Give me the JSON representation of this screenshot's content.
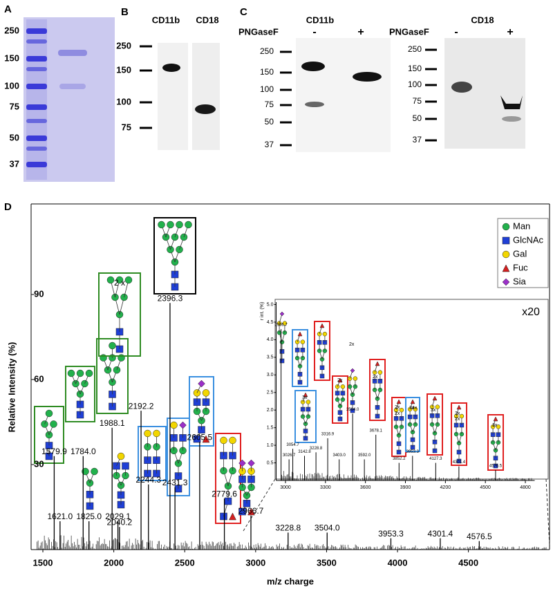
{
  "panels": {
    "A": {
      "label": "A",
      "ladder": [
        "250",
        "150",
        "100",
        "75",
        "50",
        "37"
      ]
    },
    "B": {
      "label": "B",
      "lanes": [
        "CD11b",
        "CD18"
      ],
      "ladder": [
        "250",
        "150",
        "100",
        "75"
      ]
    },
    "C": {
      "label": "C",
      "blots": [
        {
          "title": "CD11b",
          "treatment": "PNGaseF",
          "lanes": [
            "-",
            "+"
          ],
          "ladder": [
            "250",
            "150",
            "100",
            "75",
            "50",
            "37"
          ]
        },
        {
          "title": "CD18",
          "treatment": "PNGaseF",
          "lanes": [
            "-",
            "+"
          ],
          "ladder": [
            "250",
            "150",
            "100",
            "75",
            "50",
            "37"
          ]
        }
      ]
    },
    "D": {
      "label": "D",
      "legend": [
        {
          "name": "Man",
          "color": "#22b14c"
        },
        {
          "name": "GlcNAc",
          "color": "#1f3fd6"
        },
        {
          "name": "Gal",
          "color": "#f2d600"
        },
        {
          "name": "Fuc",
          "color": "#d42020"
        },
        {
          "name": "Sia",
          "color": "#9b30c8"
        }
      ],
      "glycan_notes": [
        "2 x"
      ],
      "inset_notes": [
        "2x",
        "2x",
        "3x",
        "2x",
        "2x",
        "3x",
        "2x",
        "3x",
        "3x",
        "2x",
        "3x",
        "4x"
      ]
    }
  },
  "chart_data": [
    {
      "type": "spectrum",
      "xlabel": "m/z charge",
      "ylabel": "Relative Intensity (%)",
      "color": "#000000",
      "x": [
        1579.9,
        1621.0,
        1784.0,
        1825.0,
        1988.1,
        2029.1,
        2040.2,
        2192.2,
        2244.3,
        2396.3,
        2431.3,
        2605.5,
        2779.6,
        2966.7,
        3228.8,
        3504.0,
        3953.3,
        4301.4,
        4576.5
      ],
      "values": [
        33,
        10,
        33,
        10,
        43,
        10,
        8,
        49,
        23,
        87,
        22,
        38,
        18,
        12,
        6,
        6,
        4,
        4,
        3
      ],
      "peak_labels": [
        "1579.9",
        "1621.0",
        "1784.0",
        "1825.0",
        "1988.1",
        "2029.1",
        "2040.2",
        "2192.2",
        "2244.3",
        "2396.3",
        "2431.3",
        "2605.5",
        "2779.6",
        "2966.7",
        "3228.8",
        "3504.0",
        "3953.3",
        "4301.4",
        "4576.5"
      ],
      "xlim": [
        1420,
        5070
      ],
      "xticks": [
        1500,
        2000,
        2500,
        3000,
        3500,
        4000,
        4500
      ],
      "ylim": [
        0,
        120
      ],
      "yticks": [
        30,
        60,
        90
      ]
    },
    {
      "type": "spectrum",
      "ylabel": "r int. (%)",
      "note": "x20",
      "color": "#000000",
      "x": [
        2966.7,
        3026.7,
        3054.7,
        3142.8,
        3228.8,
        3316.9,
        3403.0,
        3504.0,
        3592.0,
        3678.1,
        3852.2,
        3953.3,
        4127.3,
        4301.4,
        4576.5
      ],
      "values": [
        4.3,
        0.6,
        0.9,
        0.7,
        0.8,
        1.2,
        0.6,
        1.9,
        0.6,
        1.3,
        0.5,
        0.7,
        0.5,
        0.4,
        0.3
      ],
      "peak_labels": [
        "2966.7",
        "3026.7",
        "3054.7",
        "3142.8",
        "3228.8",
        "3316.9",
        "3403.0",
        "3504.0",
        "3592.0",
        "3678.1",
        "3852.2",
        "3953.3",
        "4127.3",
        "4301.4",
        "4576.5"
      ],
      "xlim": [
        2930,
        4870
      ],
      "xticks": [
        3000,
        3300,
        3600,
        3900,
        4200,
        4500,
        4800
      ],
      "ylim": [
        0,
        5.2
      ],
      "yticks": [
        0.5,
        {
          "value": 1.0,
          "label": "1.0"
        },
        1.5,
        {
          "value": 2.0,
          "label": "2.0"
        },
        2.5,
        {
          "value": 3.0,
          "label": "3.0"
        },
        3.5,
        {
          "value": 4.0,
          "label": "4.0"
        },
        4.5,
        {
          "value": 5.0,
          "label": "5.0"
        }
      ]
    }
  ]
}
